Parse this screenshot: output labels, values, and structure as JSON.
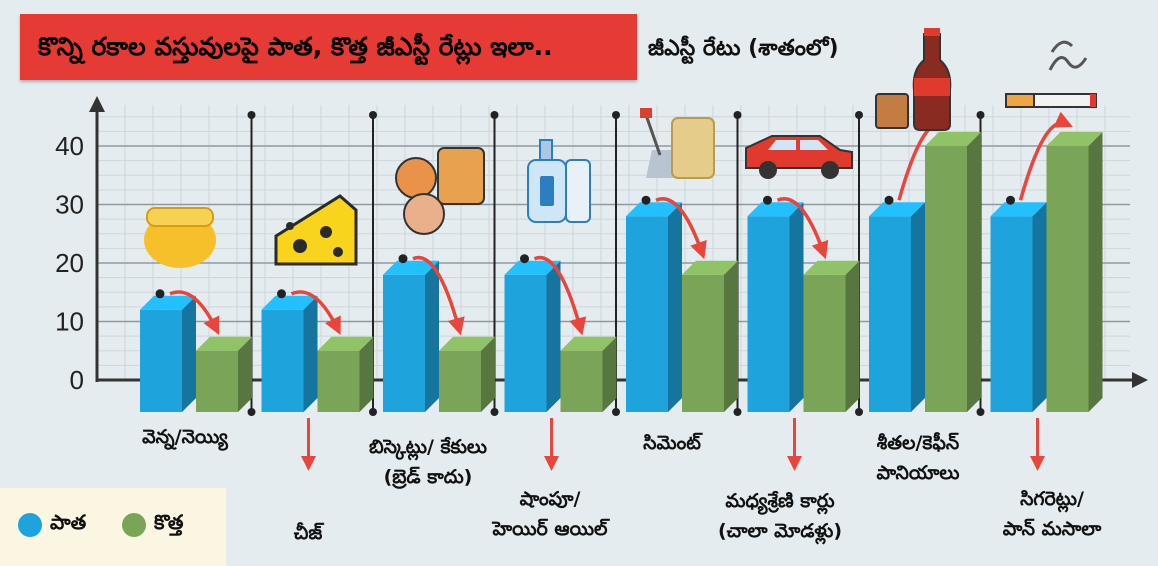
{
  "title": "కొన్ని రకాల వస్తువులపై పాత, కొత్త జీఎస్టీ రేట్లు ఇలా..",
  "subtitle": "జీఎస్టీ రేటు (శాతంలో)",
  "colors": {
    "old": "#1ea3dc",
    "new": "#7aa457",
    "banner": "#e63a35",
    "arrow": "#e8453c"
  },
  "legend": {
    "old_label": "పాత",
    "new_label": "కొత్త"
  },
  "icons": [
    "ghee-jar-icon",
    "cheese-icon",
    "biscuits-icon",
    "shampoo-bottles-icon",
    "cement-bags-icon",
    "car-icon",
    "cola-bottle-icon",
    "cigarette-icon"
  ],
  "chart_data": {
    "type": "bar",
    "title": "కొన్ని రకాల వస్తువులపై పాత, కొత్త జీఎస్టీ రేట్లు ఇలా..",
    "ylabel": "జీఎస్టీ రేటు (శాతంలో)",
    "ylim": [
      0,
      45
    ],
    "yticks": [
      0,
      10,
      20,
      30,
      40
    ],
    "grid": true,
    "legend_position": "bottom-left",
    "categories": [
      "వెన్న/నెయ్యి",
      "చీజ్",
      "బిస్కెట్లు/ కేకులు (బ్రెడ్ కాదు)",
      "షాంపూ/ హెయిర్ ఆయిల్",
      "సిమెంట్",
      "మధ్యశ్రేణి కార్లు (చాలా మోడళ్లు)",
      "శీతల/కెఫీన్ పానియాలు",
      "సిగరెట్లు/ పాన్ మసాలా"
    ],
    "series": [
      {
        "name": "పాత",
        "values": [
          12,
          12,
          18,
          18,
          28,
          28,
          28,
          28
        ]
      },
      {
        "name": "కొత్త",
        "values": [
          5,
          5,
          5,
          5,
          18,
          18,
          40,
          40
        ]
      }
    ]
  },
  "category_labels": [
    [
      "వెన్న/నెయ్యి"
    ],
    [
      "చీజ్"
    ],
    [
      "బిస్కెట్లు/ కేకులు",
      "(బ్రెడ్ కాదు)"
    ],
    [
      "షాంపూ/",
      "హెయిర్ ఆయిల్"
    ],
    [
      "సిమెంట్"
    ],
    [
      "మధ్యశ్రేణి కార్లు",
      "(చాలా మోడళ్లు)"
    ],
    [
      "శీతల/కెఫీన్",
      "పానియాలు"
    ],
    [
      "సిగరెట్లు/",
      "పాన్ మసాలా"
    ]
  ]
}
